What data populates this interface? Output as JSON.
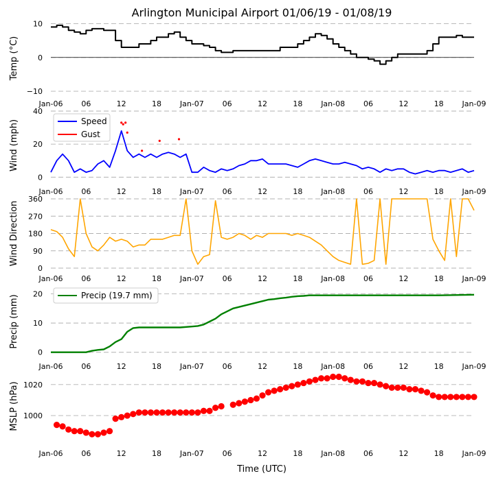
{
  "title": "Arlington Municipal Airport 01/06/19 - 01/08/19",
  "xlabel": "Time (UTC)",
  "x_ticks": [
    "Jan-06",
    "06",
    "12",
    "18",
    "Jan-07",
    "06",
    "12",
    "18",
    "Jan-08",
    "06",
    "12",
    "18",
    "Jan-09"
  ],
  "colors": {
    "temp": "#000000",
    "speed": "#0000ff",
    "gust": "#ff0000",
    "direction": "#ffa500",
    "precip": "#008000",
    "mslp": "#ff0000"
  },
  "chart_data": [
    {
      "type": "line",
      "name": "temperature",
      "ylabel": "Temp ($^\\circ$C)",
      "ylabel_display": "Temp (°C)",
      "ylim": [
        -11,
        10.5
      ],
      "yticks": [
        "10",
        "0",
        "−10"
      ],
      "ytick_values": [
        10,
        0,
        -10
      ],
      "hours": [
        0,
        1,
        2,
        3,
        4,
        5,
        6,
        7,
        8,
        9,
        10,
        11,
        12,
        13,
        14,
        15,
        16,
        17,
        18,
        19,
        20,
        21,
        22,
        23,
        24,
        25,
        26,
        27,
        28,
        29,
        30,
        31,
        32,
        33,
        34,
        35,
        36,
        37,
        38,
        39,
        40,
        41,
        42,
        43,
        44,
        45,
        46,
        47,
        48,
        49,
        50,
        51,
        52,
        53,
        54,
        55,
        56,
        57,
        58,
        59,
        60,
        61,
        62,
        63,
        64,
        65,
        66,
        67,
        68,
        69,
        70,
        71,
        72
      ],
      "values": [
        9,
        9.5,
        9,
        8,
        7.5,
        7,
        8,
        8.5,
        8.5,
        8,
        8,
        5,
        3,
        3,
        3,
        4,
        4,
        5,
        6,
        6,
        7,
        7.5,
        6,
        5,
        4,
        4,
        3.5,
        3,
        2,
        1.5,
        1.5,
        2,
        2,
        2,
        2,
        2,
        2,
        2,
        2,
        3,
        3,
        3,
        4,
        5,
        6,
        7,
        6.5,
        5.5,
        4,
        3,
        2,
        1,
        0,
        0,
        -0.5,
        -1,
        -2,
        -1,
        0,
        1,
        1,
        1,
        1,
        1,
        2,
        4,
        6,
        6,
        6,
        6.5,
        6,
        6,
        6
      ]
    },
    {
      "type": "line",
      "name": "wind",
      "ylabel": "Wind (mph)",
      "ylim": [
        -1.5,
        40
      ],
      "yticks": [
        "0",
        "20",
        "40"
      ],
      "ytick_values": [
        0,
        20,
        40
      ],
      "legend": [
        "Speed",
        "Gust"
      ],
      "series": [
        {
          "name": "Speed",
          "hours": [
            0,
            1,
            2,
            3,
            4,
            5,
            6,
            7,
            8,
            9,
            10,
            11,
            12,
            13,
            14,
            15,
            16,
            17,
            18,
            19,
            20,
            21,
            22,
            23,
            24,
            25,
            26,
            27,
            28,
            29,
            30,
            31,
            32,
            33,
            34,
            35,
            36,
            37,
            38,
            39,
            40,
            41,
            42,
            43,
            44,
            45,
            46,
            47,
            48,
            49,
            50,
            51,
            52,
            53,
            54,
            55,
            56,
            57,
            58,
            59,
            60,
            61,
            62,
            63,
            64,
            65,
            66,
            67,
            68,
            69,
            70,
            71,
            72
          ],
          "values": [
            3,
            10,
            14,
            10,
            3,
            5,
            3,
            4,
            8,
            10,
            6,
            16,
            28,
            16,
            12,
            14,
            12,
            14,
            12,
            14,
            15,
            14,
            12,
            14,
            3,
            3,
            6,
            4,
            3,
            5,
            4,
            5,
            7,
            8,
            10,
            10,
            11,
            8,
            8,
            8,
            8,
            7,
            6,
            8,
            10,
            11,
            10,
            9,
            8,
            8,
            9,
            8,
            7,
            5,
            6,
            5,
            3,
            5,
            4,
            5,
            5,
            3,
            2,
            3,
            4,
            3,
            4,
            4,
            3,
            4,
            5,
            3,
            4
          ]
        },
        {
          "name": "Gust",
          "hours": [
            12.0,
            12.3,
            12.7,
            13.0,
            15.5,
            18.5,
            21.8
          ],
          "values": [
            33,
            32,
            33,
            27,
            16,
            22,
            23
          ]
        }
      ]
    },
    {
      "type": "line",
      "name": "wind_direction",
      "ylabel": "Wind Direction",
      "ylim": [
        0,
        360
      ],
      "yticks": [
        "0",
        "90",
        "180",
        "270",
        "360"
      ],
      "ytick_values": [
        0,
        90,
        180,
        270,
        360
      ],
      "hours": [
        0,
        1,
        2,
        3,
        4,
        5,
        6,
        7,
        8,
        9,
        10,
        11,
        12,
        13,
        14,
        15,
        16,
        17,
        18,
        19,
        20,
        21,
        22,
        23,
        24,
        25,
        26,
        27,
        28,
        29,
        30,
        31,
        32,
        33,
        34,
        35,
        36,
        37,
        38,
        39,
        40,
        41,
        42,
        43,
        44,
        45,
        46,
        47,
        48,
        49,
        50,
        51,
        52,
        53,
        54,
        55,
        56,
        57,
        58,
        59,
        60,
        61,
        62,
        63,
        64,
        65,
        66,
        67,
        68,
        69,
        70,
        71,
        72
      ],
      "values": [
        200,
        190,
        160,
        100,
        60,
        360,
        180,
        110,
        90,
        120,
        160,
        140,
        150,
        140,
        110,
        120,
        120,
        150,
        150,
        150,
        160,
        170,
        170,
        360,
        90,
        20,
        60,
        70,
        350,
        160,
        150,
        160,
        180,
        170,
        150,
        170,
        160,
        180,
        180,
        180,
        180,
        170,
        180,
        170,
        160,
        140,
        120,
        90,
        60,
        40,
        30,
        20,
        360,
        20,
        25,
        40,
        360,
        20,
        360,
        360,
        360,
        360,
        360,
        360,
        360,
        150,
        90,
        40,
        360,
        60,
        360,
        360,
        300
      ]
    },
    {
      "type": "line",
      "name": "precipitation",
      "ylabel": "Precip (mm)",
      "ylim": [
        -1,
        22
      ],
      "yticks": [
        "0",
        "10",
        "20"
      ],
      "ytick_values": [
        0,
        10,
        20
      ],
      "legend": [
        "Precip (19.7 mm)"
      ],
      "hours": [
        0,
        6,
        7,
        8,
        9,
        10,
        11,
        12,
        13,
        14,
        15,
        16,
        18,
        20,
        22,
        24,
        25,
        26,
        27,
        28,
        29,
        30,
        31,
        32,
        33,
        34,
        35,
        36,
        37,
        38,
        39,
        40,
        41,
        42,
        43,
        44,
        45,
        46,
        48,
        54,
        60,
        66,
        72
      ],
      "values": [
        0,
        0,
        0.5,
        0.8,
        1.0,
        2.0,
        3.5,
        4.5,
        7.0,
        8.3,
        8.5,
        8.5,
        8.5,
        8.5,
        8.5,
        8.8,
        9.0,
        9.5,
        10.5,
        11.5,
        13.0,
        14.0,
        15.0,
        15.5,
        16.0,
        16.5,
        17.0,
        17.5,
        18.0,
        18.2,
        18.5,
        18.7,
        19.0,
        19.2,
        19.3,
        19.5,
        19.5,
        19.5,
        19.5,
        19.5,
        19.5,
        19.5,
        19.7
      ]
    },
    {
      "type": "scatter",
      "name": "mslp",
      "ylabel": "MSLP (hPa)",
      "ylim": [
        985,
        1027
      ],
      "yticks": [
        "1000",
        "1020"
      ],
      "ytick_values": [
        1000,
        1020
      ],
      "hours": [
        1,
        2,
        3,
        4,
        5,
        6,
        7,
        8,
        9,
        10,
        11,
        12,
        13,
        14,
        15,
        16,
        17,
        18,
        19,
        20,
        21,
        22,
        23,
        24,
        25,
        26,
        27,
        28,
        29,
        31,
        32,
        33,
        34,
        35,
        36,
        37,
        38,
        39,
        40,
        41,
        42,
        43,
        44,
        45,
        46,
        47,
        48,
        49,
        50,
        51,
        52,
        53,
        54,
        55,
        56,
        57,
        58,
        59,
        60,
        61,
        62,
        63,
        64,
        65,
        66,
        67,
        68,
        69,
        70,
        71,
        72
      ],
      "values": [
        994,
        993,
        991,
        990,
        990,
        989,
        988,
        988,
        989,
        990,
        998,
        999,
        1000,
        1001,
        1002,
        1002,
        1002,
        1002,
        1002,
        1002,
        1002,
        1002,
        1002,
        1002,
        1002,
        1003,
        1003,
        1005,
        1006,
        1007,
        1008,
        1009,
        1010,
        1011,
        1013,
        1015,
        1016,
        1017,
        1018,
        1019,
        1020,
        1021,
        1022,
        1023,
        1024,
        1024,
        1025,
        1025,
        1024,
        1023,
        1022,
        1022,
        1021,
        1021,
        1020,
        1019,
        1018,
        1018,
        1018,
        1017,
        1017,
        1016,
        1015,
        1013,
        1012,
        1012,
        1012,
        1012,
        1012,
        1012,
        1012
      ]
    }
  ]
}
